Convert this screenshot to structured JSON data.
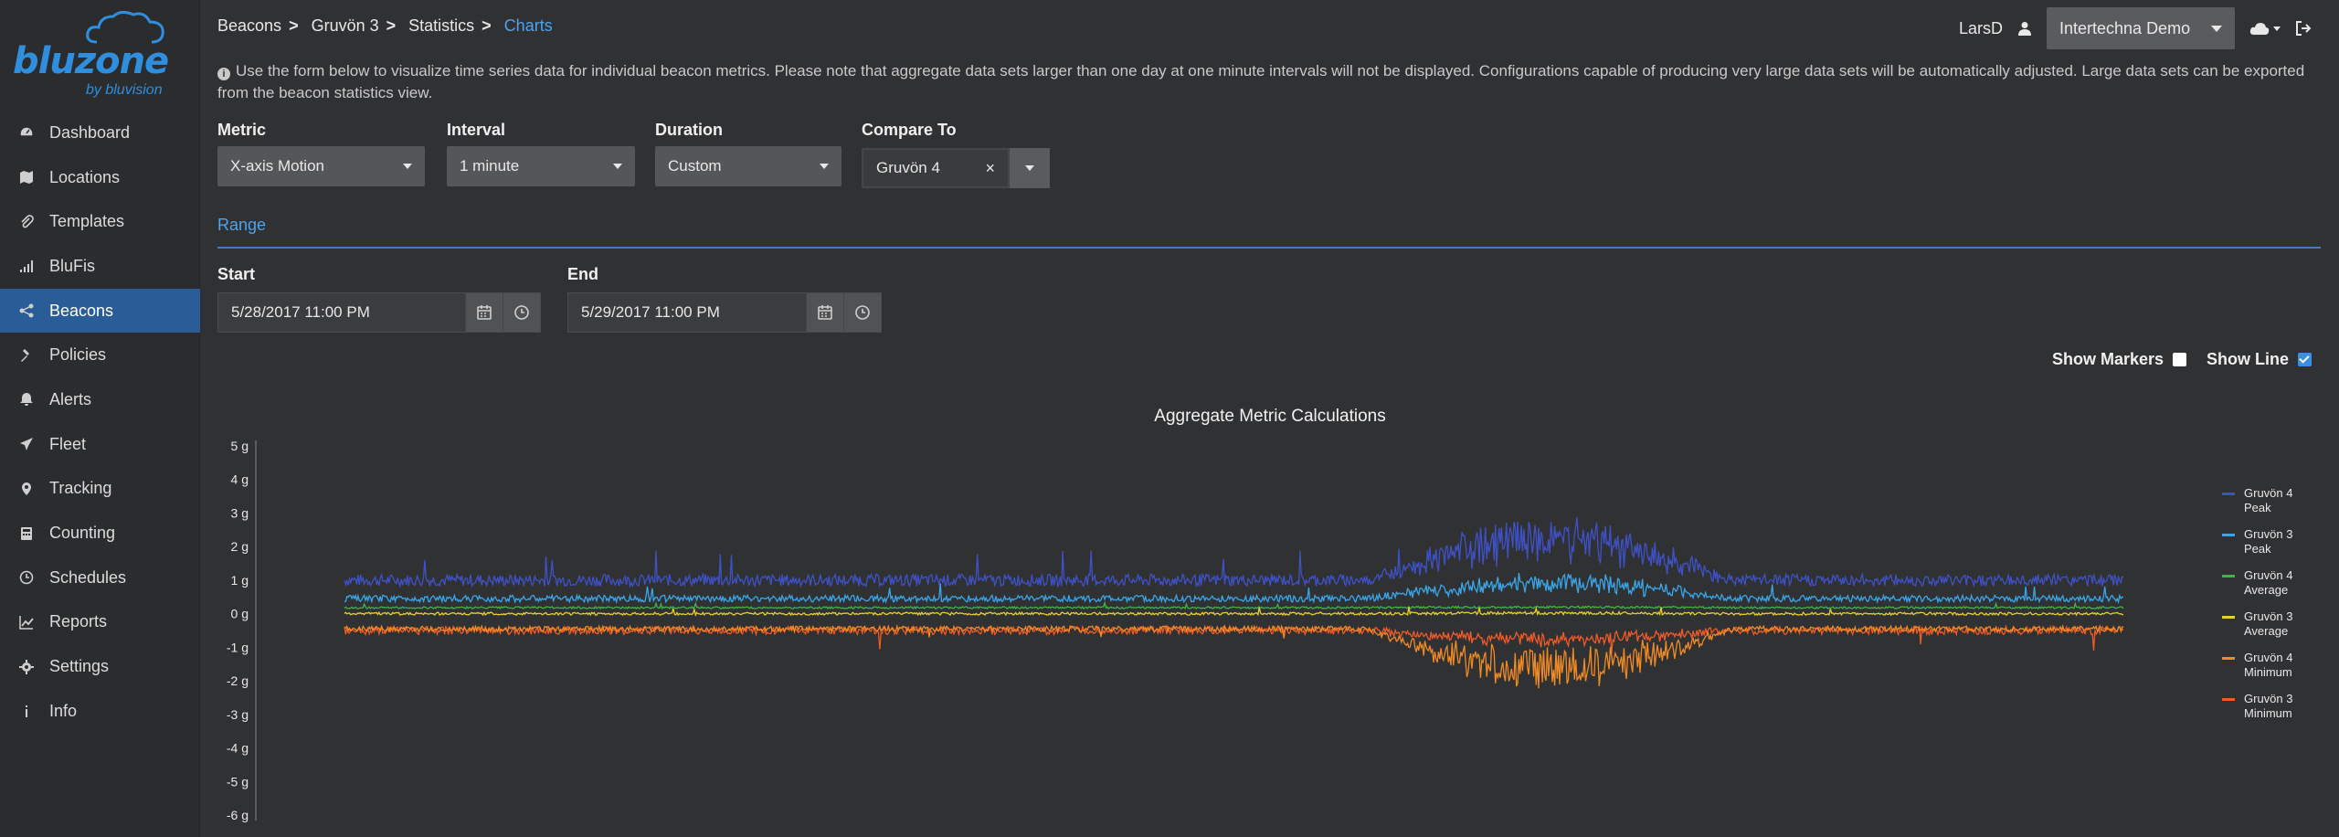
{
  "brand": {
    "name": "bluzone",
    "tagline": "by bluvision",
    "color": "#2f8fde"
  },
  "sidebar": {
    "items": [
      {
        "label": "Dashboard",
        "icon": "dashboard-icon",
        "active": false
      },
      {
        "label": "Locations",
        "icon": "map-icon",
        "active": false
      },
      {
        "label": "Templates",
        "icon": "paperclip-icon",
        "active": false
      },
      {
        "label": "BluFis",
        "icon": "signal-icon",
        "active": false
      },
      {
        "label": "Beacons",
        "icon": "share-icon",
        "active": true
      },
      {
        "label": "Policies",
        "icon": "gavel-icon",
        "active": false
      },
      {
        "label": "Alerts",
        "icon": "bell-icon",
        "active": false
      },
      {
        "label": "Fleet",
        "icon": "plane-icon",
        "active": false
      },
      {
        "label": "Tracking",
        "icon": "map-marker-icon",
        "active": false
      },
      {
        "label": "Counting",
        "icon": "calculator-icon",
        "active": false
      },
      {
        "label": "Schedules",
        "icon": "clock-icon",
        "active": false
      },
      {
        "label": "Reports",
        "icon": "line-chart-icon",
        "active": false
      },
      {
        "label": "Settings",
        "icon": "gear-icon",
        "active": false
      },
      {
        "label": "Info",
        "icon": "info-icon",
        "active": false
      }
    ]
  },
  "breadcrumb": {
    "items": [
      "Beacons",
      "Gruvön 3",
      "Statistics"
    ],
    "current": "Charts"
  },
  "header": {
    "user": "LarsD",
    "org": "Intertechna Demo"
  },
  "info": "Use the form below to visualize time series data for individual beacon metrics. Please note that aggregate data sets larger than one day at one minute intervals will not be displayed. Configurations capable of producing very large data sets will be automatically adjusted. Large data sets can be exported from the beacon statistics view.",
  "form": {
    "metric": {
      "label": "Metric",
      "value": "X-axis Motion"
    },
    "interval": {
      "label": "Interval",
      "value": "1 minute"
    },
    "duration": {
      "label": "Duration",
      "value": "Custom"
    },
    "compare": {
      "label": "Compare To",
      "value": "Gruvön 4"
    },
    "range_label": "Range",
    "start": {
      "label": "Start",
      "value": "5/28/2017 11:00 PM"
    },
    "end": {
      "label": "End",
      "value": "5/29/2017 11:00 PM"
    },
    "show_markers": {
      "label": "Show Markers",
      "checked": false
    },
    "show_line": {
      "label": "Show Line",
      "checked": true
    }
  },
  "chart_data": {
    "type": "line",
    "title": "Aggregate Metric Calculations",
    "ylim": [
      -6,
      5
    ],
    "y_ticks": [
      "5 g",
      "4 g",
      "3 g",
      "2 g",
      "1 g",
      "0 g",
      "-1 g",
      "-2 g",
      "-3 g",
      "-4 g",
      "-5 g",
      "-6 g"
    ],
    "grid": false,
    "legend_position": "right",
    "series": [
      {
        "name": "Gruvön 4 Peak",
        "color": "#3f51c7",
        "baseline": 1.0,
        "noise": 0.18,
        "burst": 1.4
      },
      {
        "name": "Gruvön 3 Peak",
        "color": "#3aa6e8",
        "baseline": 0.45,
        "noise": 0.1,
        "burst": 0.55
      },
      {
        "name": "Gruvön 4 Average",
        "color": "#45b04a",
        "baseline": 0.18,
        "noise": 0.03,
        "burst": 0.02
      },
      {
        "name": "Gruvön 3 Average",
        "color": "#e8cf2a",
        "baseline": 0.0,
        "noise": 0.04,
        "burst": 0.02
      },
      {
        "name": "Gruvön 4 Minimum",
        "color": "#f08a24",
        "baseline": -0.45,
        "noise": 0.08,
        "burst": -1.4
      },
      {
        "name": "Gruvön 3 Minimum",
        "color": "#ef5a28",
        "baseline": -0.5,
        "noise": 0.12,
        "burst": -0.3
      }
    ]
  }
}
